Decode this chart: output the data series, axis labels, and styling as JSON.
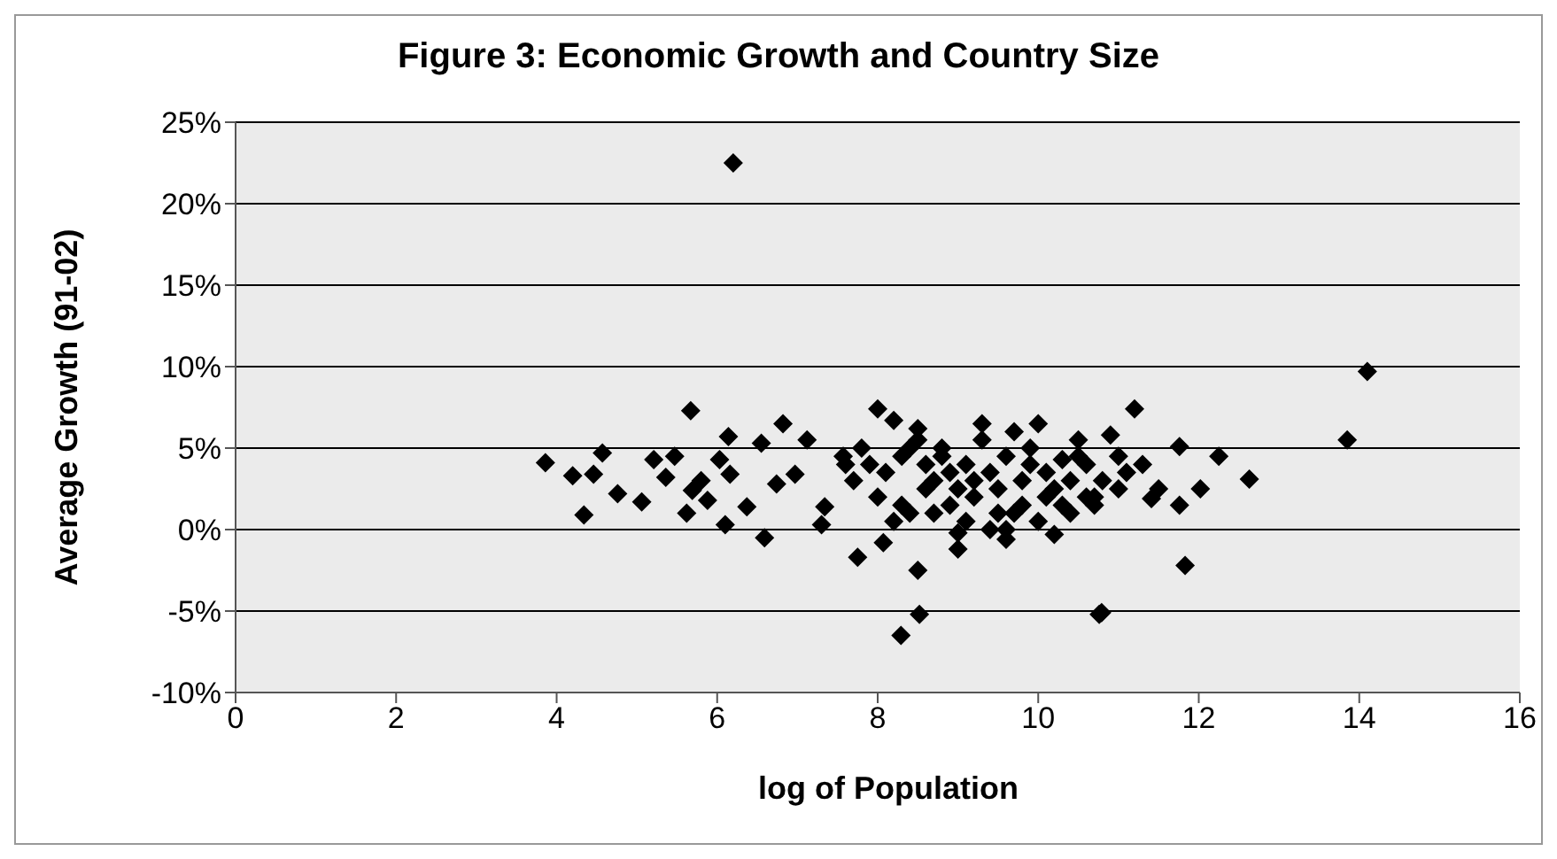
{
  "chart_data": {
    "type": "scatter",
    "title": "Figure 3: Economic Growth and Country Size",
    "xlabel": "log of Population",
    "ylabel": "Average Growth (91-02)",
    "xlim": [
      0,
      16
    ],
    "xticks": [
      0,
      2,
      4,
      6,
      8,
      10,
      12,
      14,
      16
    ],
    "ylim": [
      -0.1,
      0.25
    ],
    "yticks": [
      {
        "value": -0.1,
        "label": "-10%"
      },
      {
        "value": -0.05,
        "label": "-5%"
      },
      {
        "value": 0,
        "label": "0%"
      },
      {
        "value": 0.05,
        "label": "5%"
      },
      {
        "value": 0.1,
        "label": "10%"
      },
      {
        "value": 0.15,
        "label": "15%"
      },
      {
        "value": 0.2,
        "label": "20%"
      },
      {
        "value": 0.25,
        "label": "25%"
      }
    ],
    "grid": "y",
    "marker": "diamond",
    "series": [
      {
        "color": "#000000",
        "x": [
          3.86,
          5.67,
          4.34,
          4.2,
          4.57,
          4.46,
          4.76,
          5.06,
          5.21,
          5.47,
          5.36,
          5.69,
          5.62,
          6.03,
          6.14,
          6.1,
          6.37,
          6.59,
          6.55,
          6.82,
          7.12,
          6.74,
          6.97,
          7.3,
          7.34,
          7.57,
          5.8,
          5.88,
          6.16,
          6.2,
          7.75,
          8.5,
          8.52,
          8.29,
          10.76,
          8.07,
          9.0,
          9.6,
          13.85,
          11.83,
          10.79,
          12.63,
          12.25,
          12.02,
          11.76,
          11.76,
          11.41,
          14.1,
          7.8,
          8.0,
          8.2,
          8.5,
          9.3,
          9.7,
          10.0,
          10.5,
          10.9,
          11.2,
          10.3,
          11.0,
          11.1,
          7.9,
          8.1,
          8.3,
          8.4,
          8.6,
          8.7,
          8.8,
          8.9,
          9.0,
          9.1,
          9.2,
          9.4,
          9.5,
          9.6,
          9.8,
          9.9,
          10.1,
          10.2,
          10.4,
          10.6,
          10.7,
          10.8,
          11.3,
          11.5,
          8.0,
          8.3,
          8.6,
          8.9,
          9.2,
          9.5,
          9.8,
          10.1,
          10.4,
          10.7,
          11.0,
          8.2,
          8.7,
          9.1,
          9.4,
          9.7,
          10.0,
          10.3,
          10.6,
          8.5,
          8.8,
          9.3,
          9.9,
          10.5,
          7.6,
          7.7,
          8.4,
          9.0,
          9.6,
          10.2
        ],
        "values": [
          0.041,
          0.073,
          0.009,
          0.033,
          0.047,
          0.034,
          0.022,
          0.017,
          0.043,
          0.045,
          0.032,
          0.024,
          0.01,
          0.043,
          0.057,
          0.003,
          0.014,
          -0.005,
          0.053,
          0.065,
          0.055,
          0.028,
          0.034,
          0.003,
          0.014,
          0.045,
          0.03,
          0.018,
          0.034,
          0.225,
          -0.017,
          -0.025,
          -0.052,
          -0.065,
          -0.052,
          -0.008,
          -0.012,
          -0.006,
          0.055,
          -0.022,
          -0.051,
          0.031,
          0.045,
          0.025,
          0.051,
          0.015,
          0.019,
          0.097,
          0.05,
          0.074,
          0.067,
          0.062,
          0.065,
          0.06,
          0.065,
          0.055,
          0.058,
          0.074,
          0.043,
          0.045,
          0.035,
          0.04,
          0.035,
          0.045,
          0.05,
          0.04,
          0.03,
          0.045,
          0.035,
          0.025,
          0.04,
          0.03,
          0.035,
          0.025,
          0.045,
          0.03,
          0.04,
          0.035,
          0.025,
          0.03,
          0.04,
          0.02,
          0.03,
          0.04,
          0.025,
          0.02,
          0.015,
          0.025,
          0.015,
          0.02,
          0.01,
          0.015,
          0.02,
          0.01,
          0.015,
          0.025,
          0.005,
          0.01,
          0.005,
          0.0,
          0.01,
          0.005,
          0.015,
          0.02,
          0.055,
          0.05,
          0.055,
          0.05,
          0.045,
          0.04,
          0.03,
          0.01,
          -0.002,
          0.0,
          -0.003
        ]
      }
    ]
  }
}
